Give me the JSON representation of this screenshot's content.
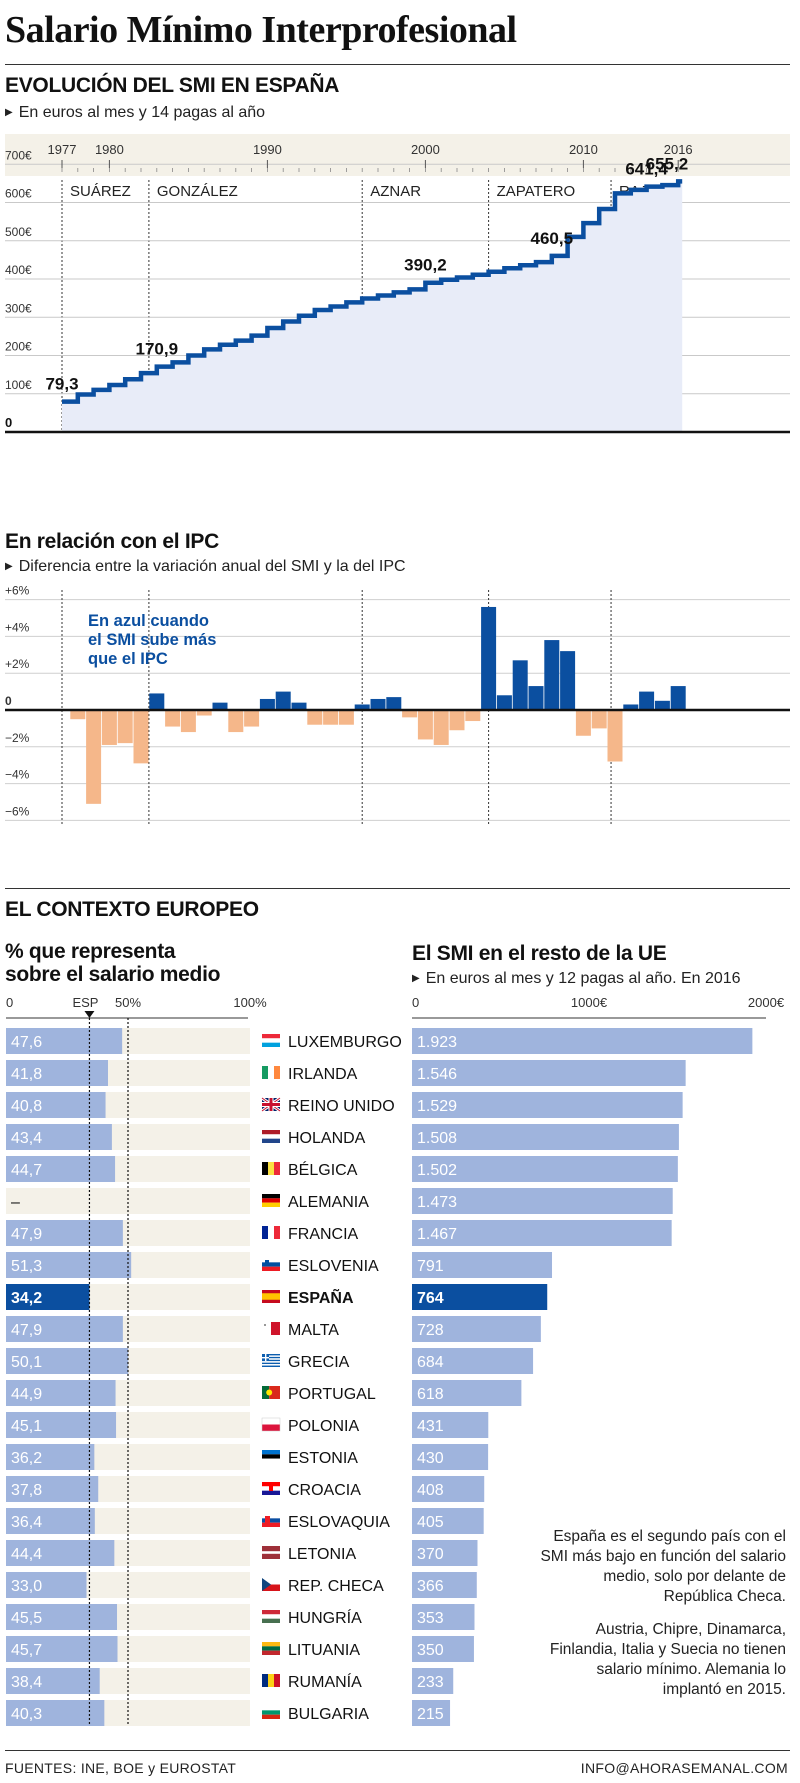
{
  "title": "Salario Mínimo Interprofesional",
  "section1": {
    "heading": "EVOLUCIÓN DEL SMI EN ESPAÑA",
    "subtitle": "En euros al mes y 14 pagas al año"
  },
  "section2": {
    "heading": "En relación con el IPC",
    "subtitle": "Diferencia entre la variación anual del SMI y la del IPC",
    "note_lines": [
      "En azul cuando",
      "el SMI sube más",
      "que el IPC"
    ]
  },
  "section3": {
    "heading": "EL CONTEXTO EUROPEO",
    "left_heading_lines": [
      "% que representa",
      "sobre el salario medio"
    ],
    "right_heading": "El SMI en el resto de la UE",
    "right_subtitle": "En euros al mes y 12 pagas al año. En 2016",
    "note1": "España es el segundo país con el SMI más bajo en función del salario medio, solo por delante de República Checa.",
    "note2": "Austria, Chipre, Dinamarca, Finlandia, Italia y Suecia no tienen salario mínimo. Alemania lo implantó en 2015."
  },
  "footer": {
    "sources": "FUENTES: INE, BOE y EUROSTAT",
    "contact": "INFO@AHORASEMANAL.COM"
  },
  "colors": {
    "accent": "#0b4fa0",
    "light_blue": "#9fb4dd",
    "area": "#e8ecf8",
    "negative": "#f5b78a",
    "band": "#f4f1e8"
  },
  "chart_data": [
    {
      "type": "line",
      "step": true,
      "title": "EVOLUCIÓN DEL SMI EN ESPAÑA",
      "subtitle": "En euros al mes y 14 pagas al año",
      "x_ticks": [
        1977,
        1980,
        1990,
        2000,
        2010,
        2016
      ],
      "y_ticks": [
        0,
        100,
        200,
        300,
        400,
        500,
        600,
        700
      ],
      "y_tick_labels": [
        "0",
        "100€",
        "200€",
        "300€",
        "400€",
        "500€",
        "600€",
        "700€"
      ],
      "ylim": [
        0,
        700
      ],
      "x": [
        1977,
        1978,
        1979,
        1980,
        1981,
        1982,
        1983,
        1984,
        1985,
        1986,
        1987,
        1988,
        1989,
        1990,
        1991,
        1992,
        1993,
        1994,
        1995,
        1996,
        1997,
        1998,
        1999,
        2000,
        2001,
        2002,
        2003,
        2004,
        2005,
        2006,
        2007,
        2008,
        2009,
        2010,
        2011,
        2012,
        2013,
        2014,
        2015,
        2016
      ],
      "values": [
        79.3,
        98,
        110,
        123,
        138,
        154,
        170.9,
        182,
        200,
        216,
        228,
        239,
        252,
        272,
        289,
        304,
        319,
        328,
        339,
        349,
        357,
        365,
        373,
        390.2,
        398,
        404,
        411,
        419,
        428,
        436,
        444,
        460.5,
        510,
        546,
        583,
        624,
        633,
        641.4,
        645.3,
        655.2
      ],
      "point_labels": [
        {
          "x": 1977,
          "text": "79,3"
        },
        {
          "x": 1983,
          "text": "170,9"
        },
        {
          "x": 2000,
          "text": "390,2"
        },
        {
          "x": 2008,
          "text": "460,5"
        },
        {
          "x": 2014,
          "text": "641,4"
        },
        {
          "x": 2016,
          "text": "655,2"
        }
      ],
      "periods": [
        {
          "start": 1977,
          "label": "SUÁREZ"
        },
        {
          "start": 1982.5,
          "label": "GONZÁLEZ"
        },
        {
          "start": 1996,
          "label": "AZNAR"
        },
        {
          "start": 2004,
          "label": "ZAPATERO"
        },
        {
          "start": 2011.75,
          "label": "RAJOY"
        }
      ]
    },
    {
      "type": "bar",
      "title": "En relación con el IPC",
      "subtitle": "Diferencia entre la variación anual del SMI y la del IPC",
      "y_ticks": [
        6,
        4,
        2,
        0,
        -2,
        -4,
        -6
      ],
      "y_tick_labels": [
        "+6%",
        "+4%",
        "+2%",
        "0",
        "−2%",
        "−4%",
        "−6%"
      ],
      "ylim": [
        -6,
        6
      ],
      "x": [
        1978,
        1979,
        1980,
        1981,
        1982,
        1983,
        1984,
        1985,
        1986,
        1987,
        1988,
        1989,
        1990,
        1991,
        1992,
        1993,
        1994,
        1995,
        1996,
        1997,
        1998,
        1999,
        2000,
        2001,
        2002,
        2003,
        2004,
        2005,
        2006,
        2007,
        2008,
        2009,
        2010,
        2011,
        2012,
        2013,
        2014,
        2015,
        2016
      ],
      "values": [
        -0.5,
        -5.1,
        -1.9,
        -1.8,
        -2.9,
        0.9,
        -0.9,
        -1.2,
        -0.3,
        0.4,
        -1.2,
        -0.9,
        0.6,
        1.0,
        0.4,
        -0.8,
        -0.8,
        -0.8,
        0.3,
        0.6,
        0.7,
        -0.4,
        -1.6,
        -1.9,
        -1.1,
        -0.6,
        5.6,
        0.8,
        2.7,
        1.3,
        3.8,
        3.2,
        -1.4,
        -1.0,
        -2.8,
        0.3,
        1.0,
        0.5,
        1.3
      ]
    },
    {
      "type": "bar",
      "orientation": "horizontal",
      "title": "% que representa sobre el salario medio",
      "x_ticks": [
        0,
        50,
        100
      ],
      "x_tick_labels": [
        "0",
        "50%",
        "100%"
      ],
      "reference_label": "ESP",
      "reference_value": 34.2,
      "xlim": [
        0,
        100
      ],
      "categories": [
        "LUXEMBURGO",
        "IRLANDA",
        "REINO UNIDO",
        "HOLANDA",
        "BÉLGICA",
        "ALEMANIA",
        "FRANCIA",
        "ESLOVENIA",
        "ESPAÑA",
        "MALTA",
        "GRECIA",
        "PORTUGAL",
        "POLONIA",
        "ESTONIA",
        "CROACIA",
        "ESLOVAQUIA",
        "LETONIA",
        "REP. CHECA",
        "HUNGRÍA",
        "LITUANIA",
        "RUMANÍA",
        "BULGARIA"
      ],
      "values": [
        47.6,
        41.8,
        40.8,
        43.4,
        44.7,
        null,
        47.9,
        51.3,
        34.2,
        47.9,
        50.1,
        44.9,
        45.1,
        36.2,
        37.8,
        36.4,
        44.4,
        33.0,
        45.5,
        45.7,
        38.4,
        40.3
      ],
      "value_labels": [
        "47,6",
        "41,8",
        "40,8",
        "43,4",
        "44,7",
        "–",
        "47,9",
        "51,3",
        "34,2",
        "47,9",
        "50,1",
        "44,9",
        "45,1",
        "36,2",
        "37,8",
        "36,4",
        "44,4",
        "33,0",
        "45,5",
        "45,7",
        "38,4",
        "40,3"
      ],
      "highlight": "ESPAÑA"
    },
    {
      "type": "bar",
      "orientation": "horizontal",
      "title": "El SMI en el resto de la UE",
      "subtitle": "En euros al mes y 12 pagas al año. En 2016",
      "x_ticks": [
        0,
        1000,
        2000
      ],
      "x_tick_labels": [
        "0",
        "1000€",
        "2000€"
      ],
      "xlim": [
        0,
        2000
      ],
      "categories": [
        "LUXEMBURGO",
        "IRLANDA",
        "REINO UNIDO",
        "HOLANDA",
        "BÉLGICA",
        "ALEMANIA",
        "FRANCIA",
        "ESLOVENIA",
        "ESPAÑA",
        "MALTA",
        "GRECIA",
        "PORTUGAL",
        "POLONIA",
        "ESTONIA",
        "CROACIA",
        "ESLOVAQUIA",
        "LETONIA",
        "REP. CHECA",
        "HUNGRÍA",
        "LITUANIA",
        "RUMANÍA",
        "BULGARIA"
      ],
      "values": [
        1923,
        1546,
        1529,
        1508,
        1502,
        1473,
        1467,
        791,
        764,
        728,
        684,
        618,
        431,
        430,
        408,
        405,
        370,
        366,
        353,
        350,
        233,
        215
      ],
      "value_labels": [
        "1.923",
        "1.546",
        "1.529",
        "1.508",
        "1.502",
        "1.473",
        "1.467",
        "791",
        "764",
        "728",
        "684",
        "618",
        "431",
        "430",
        "408",
        "405",
        "370",
        "366",
        "353",
        "350",
        "233",
        "215"
      ],
      "highlight": "ESPAÑA"
    }
  ]
}
